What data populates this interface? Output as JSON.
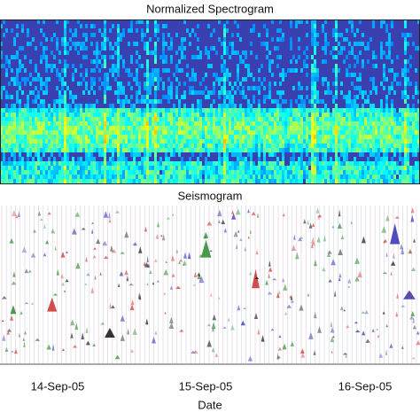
{
  "panels": [
    {
      "title": "Normalized Spectrogram"
    },
    {
      "title": "Seismogram"
    }
  ],
  "x_axis": {
    "label": "Date",
    "ticks": [
      "14-Sep-05",
      "15-Sep-05",
      "16-Sep-05"
    ]
  }
}
